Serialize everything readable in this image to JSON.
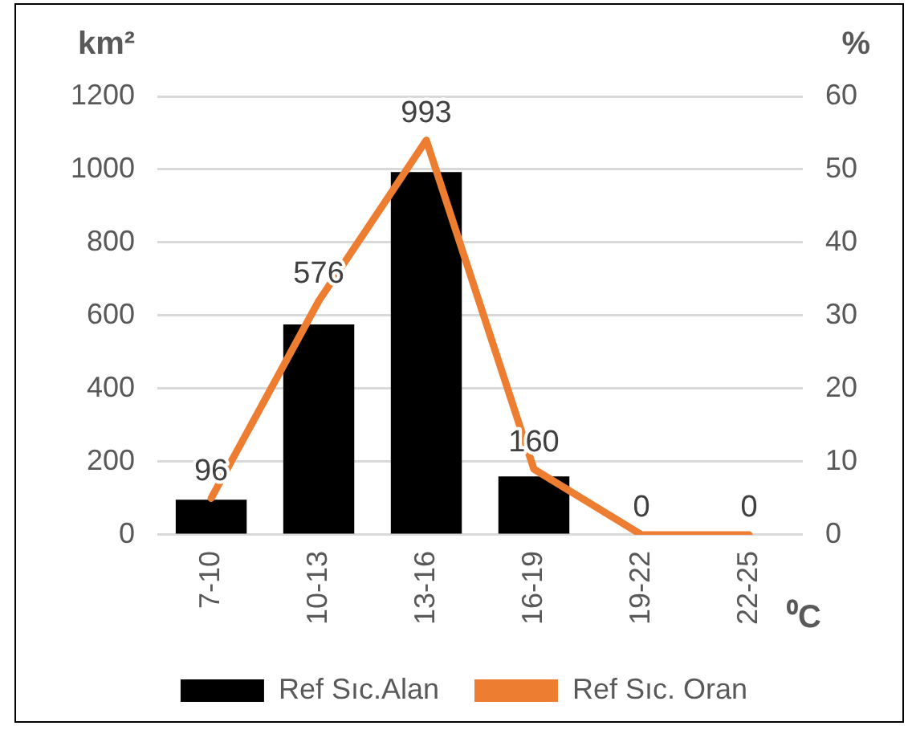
{
  "chart_data": {
    "type": "bar",
    "xlabel": "⁰C",
    "ylabel": "km²",
    "y2label": "%",
    "categories": [
      "7-10",
      "10-13",
      "13-16",
      "16-19",
      "19-22",
      "22-25"
    ],
    "series": [
      {
        "name": "Ref Sıc.Alan",
        "color": "#000000",
        "values": [
          96,
          576,
          993,
          160,
          0,
          0
        ],
        "value_labels": [
          "96",
          "576",
          "993",
          "160",
          "0",
          "0"
        ]
      },
      {
        "name": "Ref Sıc. Oran",
        "type": "line",
        "axis": "y2",
        "color": "#ed7d31",
        "values": [
          5,
          32,
          54,
          9,
          0,
          0
        ]
      }
    ],
    "ylim": [
      0,
      1200
    ],
    "yticks": [
      0,
      200,
      400,
      600,
      800,
      1000,
      1200
    ],
    "y2lim": [
      0,
      60
    ],
    "y2ticks": [
      0,
      10,
      20,
      30,
      40,
      50,
      60
    ],
    "grid": "y",
    "legend": "bottom",
    "marker": "none"
  }
}
